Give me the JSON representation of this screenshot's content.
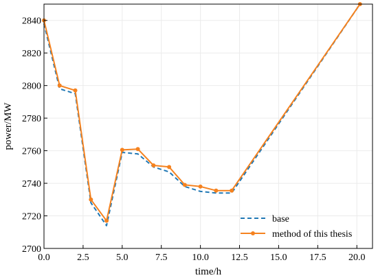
{
  "chart_data": {
    "type": "line",
    "xlabel": "time/h",
    "ylabel": "power/MW",
    "xlim": [
      0,
      21
    ],
    "ylim": [
      2700,
      2850
    ],
    "xticks": [
      0,
      2.5,
      5,
      7.5,
      10,
      12.5,
      15,
      17.5,
      20
    ],
    "xtick_labels": [
      "0.0",
      "2.5",
      "5.0",
      "7.5",
      "10.0",
      "12.5",
      "15.0",
      "17.5",
      "20.0"
    ],
    "yticks": [
      2700,
      2720,
      2740,
      2760,
      2780,
      2800,
      2820,
      2840
    ],
    "ytick_labels": [
      "2700",
      "2720",
      "2740",
      "2760",
      "2780",
      "2800",
      "2820",
      "2840"
    ],
    "grid": true,
    "legend_position": "lower-right",
    "x": [
      0,
      1,
      2,
      3,
      4,
      5,
      6,
      7,
      8,
      9,
      10,
      11,
      12,
      20.2
    ],
    "series": [
      {
        "name": "base",
        "style": "dashed",
        "color": "#1f77b4",
        "values": [
          2838,
          2798,
          2795,
          2728,
          2714,
          2759,
          2758,
          2750,
          2747,
          2738,
          2735,
          2734,
          2734,
          2850
        ]
      },
      {
        "name": "method of this thesis",
        "style": "solid-marker",
        "color": "#f5821f",
        "values": [
          2840,
          2800,
          2797,
          2730,
          2717,
          2760.5,
          2761,
          2751,
          2750,
          2739,
          2738,
          2735.5,
          2735.5,
          2850
        ]
      }
    ]
  }
}
